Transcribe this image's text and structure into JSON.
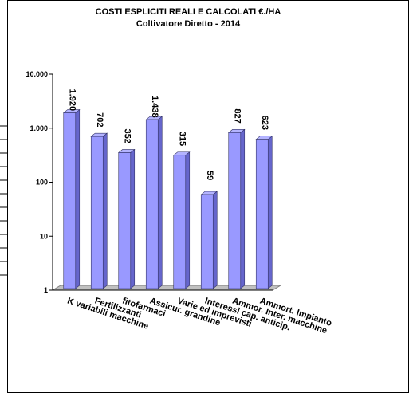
{
  "chart_data": {
    "type": "bar",
    "title": "COSTI ESPLICITI REALI E CALCOLATI  €./HA",
    "subtitle": "Coltivatore  Diretto - 2014",
    "xlabel": "",
    "ylabel": "",
    "yscale": "log",
    "ylim": [
      1,
      10000
    ],
    "yticks": [
      1,
      10,
      100,
      1000,
      10000
    ],
    "ytick_labels": [
      "1",
      "10",
      "100",
      "1.000",
      "10.000"
    ],
    "grid": false,
    "legend": "none",
    "bar_color": "#9999ff",
    "bar_edge_color": "#333366",
    "categories": [
      "K variabili macchine",
      "Fertilizzanti",
      "fitofarmaci",
      "Assicur. grandine",
      "Varie ed imprevisti",
      "Interessi cap. anticip.",
      "Ammor. Inter. macchine",
      "Ammort. Impianto"
    ],
    "values": [
      1920,
      702,
      352,
      1438,
      315,
      59,
      827,
      623
    ],
    "value_labels": [
      "1.920",
      "702",
      "352",
      "1.438",
      "315",
      "59",
      "827",
      "623"
    ]
  }
}
